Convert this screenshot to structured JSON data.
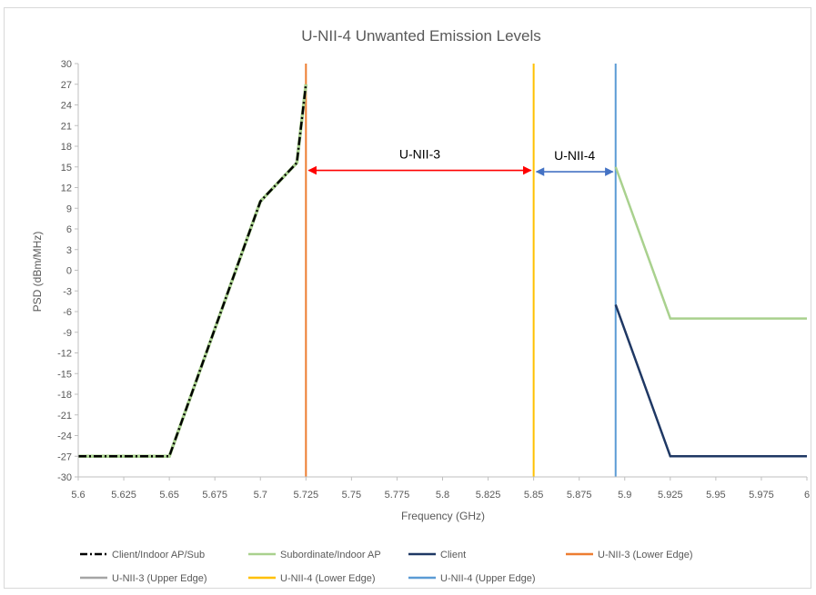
{
  "chart_data": {
    "type": "line",
    "title": "U-NII-4 Unwanted Emission Levels",
    "xlabel": "Frequency (GHz)",
    "ylabel": "PSD (dBm/MHz)",
    "xlim": [
      5.6,
      6.0
    ],
    "ylim": [
      -30,
      30
    ],
    "x_ticks": [
      "5.6",
      "5.625",
      "5.65",
      "5.675",
      "5.7",
      "5.725",
      "5.75",
      "5.775",
      "5.8",
      "5.825",
      "5.85",
      "5.875",
      "5.9",
      "5.925",
      "5.95",
      "5.975",
      "6"
    ],
    "y_ticks": [
      "30",
      "27",
      "24",
      "21",
      "18",
      "15",
      "12",
      "9",
      "6",
      "3",
      "0",
      "-3",
      "-6",
      "-9",
      "-12",
      "-15",
      "-18",
      "-21",
      "-24",
      "-27",
      "-30"
    ],
    "grid": false,
    "legend_position": "bottom",
    "series": [
      {
        "name": "Client/Indoor AP/Sub",
        "color": "#000000",
        "style": "dash-dot",
        "points": [
          [
            5.6,
            -27
          ],
          [
            5.65,
            -27
          ],
          [
            5.7,
            10
          ],
          [
            5.72,
            15.6
          ],
          [
            5.725,
            27
          ]
        ]
      },
      {
        "name": "Subordinate/Indoor AP",
        "color": "#a9d18e",
        "style": "solid",
        "points": [
          [
            5.895,
            15
          ],
          [
            5.925,
            -7
          ],
          [
            6.0,
            -7
          ]
        ]
      },
      {
        "name": "Client",
        "color": "#1f3864",
        "style": "solid",
        "points": [
          [
            5.895,
            -5
          ],
          [
            5.925,
            -27
          ],
          [
            6.0,
            -27
          ]
        ]
      },
      {
        "name": "U-NII-3 (Lower Edge)",
        "color": "#ed7d31",
        "style": "vertical",
        "x": 5.725
      },
      {
        "name": "U-NII-3 (Upper Edge)",
        "color": "#a5a5a5",
        "style": "vertical",
        "x": 5.85
      },
      {
        "name": "U-NII-4 (Lower Edge)",
        "color": "#ffc000",
        "style": "vertical",
        "x": 5.85
      },
      {
        "name": "U-NII-4 (Upper Edge)",
        "color": "#5b9bd5",
        "style": "vertical",
        "x": 5.895
      }
    ],
    "annotations": [
      {
        "text": "U-NII-3",
        "x_from": 5.725,
        "x_to": 5.85,
        "y": 14.5,
        "color": "#ff0000"
      },
      {
        "text": "U-NII-4",
        "x_from": 5.85,
        "x_to": 5.895,
        "y": 14.3,
        "color": "#4472c4"
      }
    ]
  }
}
